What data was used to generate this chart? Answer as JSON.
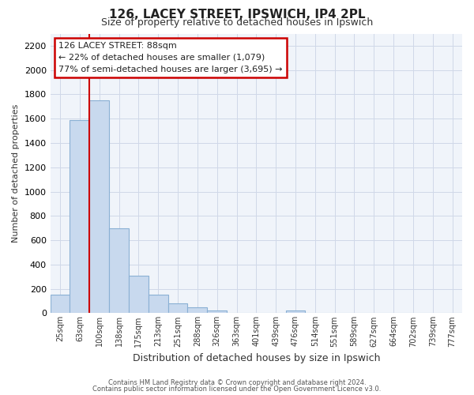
{
  "title": "126, LACEY STREET, IPSWICH, IP4 2PL",
  "subtitle": "Size of property relative to detached houses in Ipswich",
  "xlabel": "Distribution of detached houses by size in Ipswich",
  "ylabel": "Number of detached properties",
  "bar_labels": [
    "25sqm",
    "63sqm",
    "100sqm",
    "138sqm",
    "175sqm",
    "213sqm",
    "251sqm",
    "288sqm",
    "326sqm",
    "363sqm",
    "401sqm",
    "439sqm",
    "476sqm",
    "514sqm",
    "551sqm",
    "589sqm",
    "627sqm",
    "664sqm",
    "702sqm",
    "739sqm",
    "777sqm"
  ],
  "bar_values": [
    155,
    1590,
    1750,
    700,
    310,
    155,
    80,
    45,
    20,
    0,
    0,
    0,
    20,
    0,
    0,
    0,
    0,
    0,
    0,
    0,
    0
  ],
  "bar_color": "#c8d9ee",
  "bar_edge_color": "#8ab0d4",
  "vline_x": 1.5,
  "vline_color": "#cc0000",
  "annotation_title": "126 LACEY STREET: 88sqm",
  "annotation_line1": "← 22% of detached houses are smaller (1,079)",
  "annotation_line2": "77% of semi-detached houses are larger (3,695) →",
  "annotation_box_color": "#ffffff",
  "annotation_box_edge": "#cc0000",
  "ylim": [
    0,
    2300
  ],
  "yticks": [
    0,
    200,
    400,
    600,
    800,
    1000,
    1200,
    1400,
    1600,
    1800,
    2000,
    2200
  ],
  "footer1": "Contains HM Land Registry data © Crown copyright and database right 2024.",
  "footer2": "Contains public sector information licensed under the Open Government Licence v3.0."
}
